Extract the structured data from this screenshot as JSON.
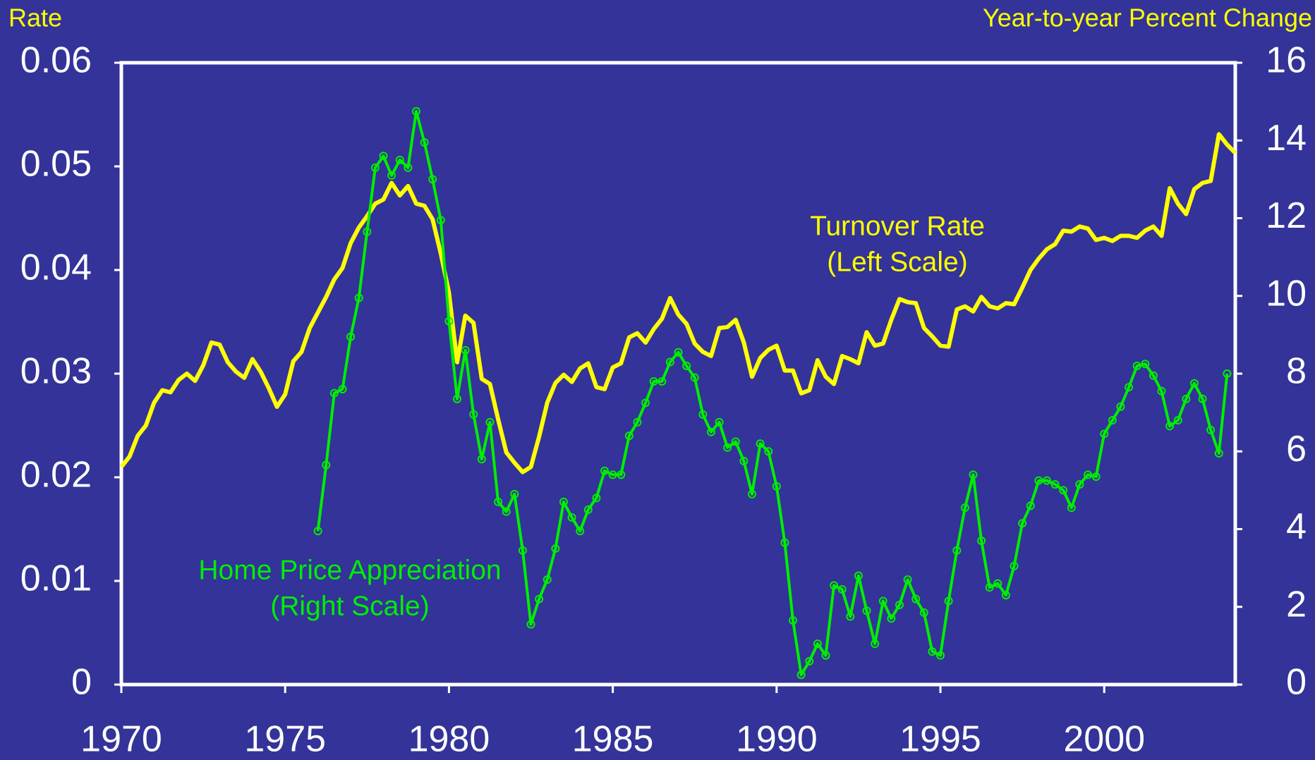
{
  "chart_data": {
    "type": "line",
    "ylabel": "Rate",
    "y2label": "Year-to-year Percent Change",
    "annotations": [
      [
        "Turnover Rate",
        "(Left Scale)"
      ],
      [
        "Home Price Appreciation",
        "(Right Scale)"
      ]
    ],
    "xlim": [
      1970,
      2004
    ],
    "xticks": [
      1970,
      1975,
      1980,
      1985,
      1990,
      1995,
      2000
    ],
    "ylim": [
      0,
      0.06
    ],
    "yticks": [
      0,
      0.01,
      0.02,
      0.03,
      0.04,
      0.05,
      0.06
    ],
    "y2lim": [
      0,
      16
    ],
    "y2ticks": [
      0,
      2,
      4,
      6,
      8,
      10,
      12,
      14,
      16
    ],
    "x": [
      1970,
      1970.25,
      1970.5,
      1970.75,
      1971,
      1971.25,
      1971.5,
      1971.75,
      1972,
      1972.25,
      1972.5,
      1972.75,
      1973,
      1973.25,
      1973.5,
      1973.75,
      1974,
      1974.25,
      1974.5,
      1974.75,
      1975,
      1975.25,
      1975.5,
      1975.75,
      1976,
      1976.25,
      1976.5,
      1976.75,
      1977,
      1977.25,
      1977.5,
      1977.75,
      1978,
      1978.25,
      1978.5,
      1978.75,
      1979,
      1979.25,
      1979.5,
      1979.75,
      1980,
      1980.25,
      1980.5,
      1980.75,
      1981,
      1981.25,
      1981.5,
      1981.75,
      1982,
      1982.25,
      1982.5,
      1982.75,
      1983,
      1983.25,
      1983.5,
      1983.75,
      1984,
      1984.25,
      1984.5,
      1984.75,
      1985,
      1985.25,
      1985.5,
      1985.75,
      1986,
      1986.25,
      1986.5,
      1986.75,
      1987,
      1987.25,
      1987.5,
      1987.75,
      1988,
      1988.25,
      1988.5,
      1988.75,
      1989,
      1989.25,
      1989.5,
      1989.75,
      1990,
      1990.25,
      1990.5,
      1990.75,
      1991,
      1991.25,
      1991.5,
      1991.75,
      1992,
      1992.25,
      1992.5,
      1992.75,
      1993,
      1993.25,
      1993.5,
      1993.75,
      1994,
      1994.25,
      1994.5,
      1994.75,
      1995,
      1995.25,
      1995.5,
      1995.75,
      1996,
      1996.25,
      1996.5,
      1996.75,
      1997,
      1997.25,
      1997.5,
      1997.75,
      1998,
      1998.25,
      1998.5,
      1998.75,
      1999,
      1999.25,
      1999.5,
      1999.75,
      2000,
      2000.25,
      2000.5,
      2000.75,
      2001,
      2001.25,
      2001.5,
      2001.75,
      2002,
      2002.25,
      2002.5,
      2002.75,
      2003,
      2003.25,
      2003.5,
      2003.75,
      2004
    ],
    "series": [
      {
        "name": "Turnover Rate",
        "color": "#ffff00",
        "axis": "y",
        "markers": false,
        "values": [
          0.021,
          0.022,
          0.024,
          0.025,
          0.0272,
          0.0284,
          0.0282,
          0.0294,
          0.03,
          0.0293,
          0.0308,
          0.033,
          0.0328,
          0.0311,
          0.0302,
          0.0296,
          0.0314,
          0.0302,
          0.0286,
          0.0268,
          0.028,
          0.0312,
          0.0321,
          0.0344,
          0.0359,
          0.0374,
          0.0391,
          0.0402,
          0.0426,
          0.0441,
          0.0452,
          0.0464,
          0.0468,
          0.0484,
          0.0472,
          0.0481,
          0.0464,
          0.0462,
          0.0449,
          0.0416,
          0.0378,
          0.0311,
          0.0356,
          0.0349,
          0.0295,
          0.029,
          0.0256,
          0.0224,
          0.0214,
          0.0205,
          0.021,
          0.0239,
          0.0272,
          0.0291,
          0.0299,
          0.0292,
          0.0305,
          0.031,
          0.0287,
          0.0285,
          0.0306,
          0.031,
          0.0335,
          0.0339,
          0.033,
          0.0343,
          0.0353,
          0.0373,
          0.0357,
          0.0348,
          0.0329,
          0.0321,
          0.0317,
          0.0344,
          0.0345,
          0.0352,
          0.033,
          0.0297,
          0.0315,
          0.0323,
          0.0327,
          0.0303,
          0.0303,
          0.0281,
          0.0284,
          0.0313,
          0.0297,
          0.029,
          0.0317,
          0.0314,
          0.031,
          0.034,
          0.0327,
          0.0329,
          0.0352,
          0.0372,
          0.0369,
          0.0368,
          0.0344,
          0.0336,
          0.0327,
          0.0326,
          0.0362,
          0.0365,
          0.036,
          0.0374,
          0.0365,
          0.0363,
          0.0368,
          0.0367,
          0.0383,
          0.04,
          0.0411,
          0.042,
          0.0425,
          0.0438,
          0.0437,
          0.0442,
          0.044,
          0.0429,
          0.0431,
          0.0428,
          0.0433,
          0.0433,
          0.0431,
          0.0438,
          0.0442,
          0.0433,
          0.0479,
          0.0464,
          0.0454,
          0.0478,
          0.0484,
          0.0486,
          0.0531,
          0.0521,
          0.0513
        ]
      },
      {
        "name": "Home Price Appreciation",
        "color": "#00ee00",
        "axis": "y2",
        "markers": true,
        "values": [
          null,
          null,
          null,
          null,
          null,
          null,
          null,
          null,
          null,
          null,
          null,
          null,
          null,
          null,
          null,
          null,
          null,
          null,
          null,
          null,
          null,
          null,
          null,
          null,
          3.95,
          5.65,
          7.5,
          7.6,
          8.95,
          9.95,
          11.65,
          13.3,
          13.6,
          13.1,
          13.5,
          13.3,
          14.75,
          13.95,
          13.0,
          11.95,
          9.35,
          7.35,
          8.6,
          6.95,
          5.8,
          6.75,
          4.7,
          4.45,
          4.9,
          3.45,
          1.55,
          2.2,
          2.7,
          3.5,
          4.7,
          4.3,
          3.95,
          4.5,
          4.8,
          5.5,
          5.4,
          5.4,
          6.4,
          6.75,
          7.25,
          7.8,
          7.8,
          8.3,
          8.55,
          8.2,
          7.9,
          6.95,
          6.5,
          6.75,
          6.1,
          6.25,
          5.75,
          4.9,
          6.2,
          6.0,
          5.1,
          3.65,
          1.65,
          0.25,
          0.6,
          1.05,
          0.75,
          2.55,
          2.45,
          1.75,
          2.8,
          1.9,
          1.05,
          2.15,
          1.7,
          2.05,
          2.7,
          2.2,
          1.85,
          0.85,
          0.75,
          2.15,
          3.45,
          4.55,
          5.4,
          3.7,
          2.5,
          2.6,
          2.3,
          3.05,
          4.15,
          4.6,
          5.25,
          5.25,
          5.15,
          5.0,
          4.55,
          5.15,
          5.4,
          5.35,
          6.45,
          6.8,
          7.15,
          7.65,
          8.2,
          8.25,
          7.95,
          7.55,
          6.65,
          6.8,
          7.35,
          7.75,
          7.35,
          6.55,
          5.95,
          8.0,
          null
        ]
      }
    ]
  }
}
